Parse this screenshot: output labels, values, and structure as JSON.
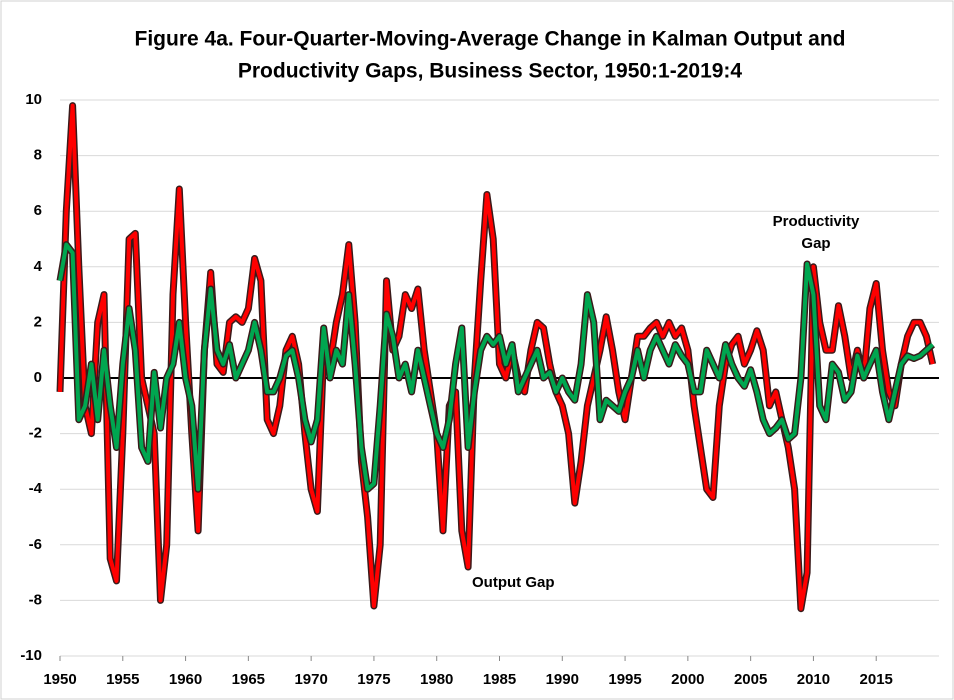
{
  "chart_data": {
    "type": "line",
    "title": [
      "Figure 4a. Four-Quarter-Moving-Average Change in Kalman Output and",
      "Productivity Gaps, Business Sector, 1950:1-2019:4"
    ],
    "annotations": [
      [
        "Productivity",
        "Gap"
      ],
      [
        "Output Gap"
      ]
    ],
    "x": [
      1950,
      1950.5,
      1951,
      1951.5,
      1952,
      1952.5,
      1953,
      1953.5,
      1954,
      1954.5,
      1955,
      1955.5,
      1956,
      1956.5,
      1957,
      1957.5,
      1958,
      1958.5,
      1959,
      1959.5,
      1960,
      1960.5,
      1961,
      1961.5,
      1962,
      1962.5,
      1963,
      1963.5,
      1964,
      1964.5,
      1965,
      1965.5,
      1966,
      1966.5,
      1967,
      1967.5,
      1968,
      1968.5,
      1969,
      1969.5,
      1970,
      1970.5,
      1971,
      1971.5,
      1972,
      1972.5,
      1973,
      1973.5,
      1974,
      1974.5,
      1975,
      1975.5,
      1976,
      1976.5,
      1977,
      1977.5,
      1978,
      1978.5,
      1979,
      1979.5,
      1980,
      1980.5,
      1981,
      1981.5,
      1982,
      1982.5,
      1983,
      1983.5,
      1984,
      1984.5,
      1985,
      1985.5,
      1986,
      1986.5,
      1987,
      1987.5,
      1988,
      1988.5,
      1989,
      1989.5,
      1990,
      1990.5,
      1991,
      1991.5,
      1992,
      1992.5,
      1993,
      1993.5,
      1994,
      1994.5,
      1995,
      1995.5,
      1996,
      1996.5,
      1997,
      1997.5,
      1998,
      1998.5,
      1999,
      1999.5,
      2000,
      2000.5,
      2001,
      2001.5,
      2002,
      2002.5,
      2003,
      2003.5,
      2004,
      2004.5,
      2005,
      2005.5,
      2006,
      2006.5,
      2007,
      2007.5,
      2008,
      2008.5,
      2009,
      2009.5,
      2010,
      2010.5,
      2011,
      2011.5,
      2012,
      2012.5,
      2013,
      2013.5,
      2014,
      2014.5,
      2015,
      2015.5,
      2016,
      2016.5,
      2017,
      2017.5,
      2018,
      2018.5,
      2019,
      2019.5
    ],
    "series": [
      {
        "name": "Output Gap",
        "color": "#ff0000",
        "values": [
          -0.5,
          6,
          9.8,
          4,
          -1,
          -2,
          2,
          3,
          -6.5,
          -7.3,
          -2,
          5,
          5.2,
          0,
          -1,
          -2,
          -8,
          -6,
          3,
          6.8,
          2,
          -2,
          -5.5,
          1,
          3.8,
          0.5,
          0.2,
          2,
          2.2,
          2,
          2.5,
          4.3,
          3.5,
          -1.5,
          -2,
          -1,
          1,
          1.5,
          0.5,
          -2,
          -4,
          -4.8,
          1,
          0.5,
          2,
          3,
          4.8,
          2,
          -3,
          -5,
          -8.2,
          -6,
          3.5,
          1,
          1.5,
          3,
          2.5,
          3.2,
          1,
          -0.5,
          -2,
          -5.5,
          -1,
          -0.5,
          -5.5,
          -6.8,
          0,
          3.5,
          6.6,
          5,
          0.5,
          0,
          1,
          0,
          -0.5,
          1,
          2,
          1.8,
          0.5,
          -0.5,
          -1,
          -2,
          -4.5,
          -3,
          -1,
          0,
          1,
          2.2,
          1,
          -0.5,
          -1.5,
          0,
          1.5,
          1.5,
          1.8,
          2,
          1.5,
          2,
          1.5,
          1.8,
          1,
          -1,
          -2.5,
          -4,
          -4.3,
          -1,
          0.5,
          1.2,
          1.5,
          0.5,
          1,
          1.7,
          1,
          -1,
          -0.5,
          -1.5,
          -2.5,
          -4,
          -8.3,
          -7,
          4,
          2,
          1,
          1,
          2.6,
          1.5,
          0,
          1,
          0,
          2.5,
          3.4,
          1,
          -0.5,
          -1,
          0.5,
          1.5,
          2,
          2,
          1.5,
          0.5
        ]
      },
      {
        "name": "Productivity Gap",
        "color": "#00a650",
        "values": [
          3.5,
          4.8,
          4.5,
          -1.5,
          -1,
          0.5,
          -1.5,
          1,
          -1,
          -2.5,
          0.5,
          2.5,
          1,
          -2.5,
          -3,
          0.2,
          -1.8,
          0,
          0.5,
          2,
          0,
          -1,
          -4,
          1,
          3.2,
          1,
          0.5,
          1.2,
          0,
          0.5,
          1,
          2,
          1,
          -0.5,
          -0.5,
          0,
          0.8,
          1,
          0,
          -1.5,
          -2.3,
          -1.5,
          1.8,
          0,
          1,
          0.5,
          3,
          0.5,
          -2.5,
          -4,
          -3.8,
          -1,
          2.3,
          1.5,
          0,
          0.5,
          -0.5,
          1,
          0,
          -1,
          -2,
          -2.5,
          -1.5,
          0.5,
          1.8,
          -2.5,
          -0.5,
          1,
          1.5,
          1.2,
          1.5,
          0.5,
          1.2,
          -0.5,
          0,
          0.5,
          1,
          0,
          0.2,
          -0.5,
          0,
          -0.5,
          -0.8,
          0.5,
          3,
          2,
          -1.5,
          -0.8,
          -1,
          -1.2,
          -0.5,
          0,
          1,
          0,
          1,
          1.5,
          1,
          0.5,
          1.2,
          0.8,
          0.5,
          -0.5,
          -0.5,
          1,
          0.5,
          0,
          1.2,
          0.5,
          0,
          -0.3,
          0.3,
          -0.5,
          -1.5,
          -2,
          -1.8,
          -1.5,
          -2.2,
          -2,
          0,
          4.1,
          3,
          -1,
          -1.5,
          0.5,
          0.2,
          -0.8,
          -0.5,
          0.8,
          0,
          0.5,
          1,
          -0.5,
          -1.5,
          -0.5,
          0.5,
          0.8,
          0.7,
          0.8,
          1,
          1.2
        ]
      }
    ],
    "xlim": [
      1950,
      2020
    ],
    "xticks": [
      1950,
      1955,
      1960,
      1965,
      1970,
      1975,
      1980,
      1985,
      1990,
      1995,
      2000,
      2005,
      2010,
      2015
    ],
    "ylim": [
      -10,
      10
    ],
    "yticks": [
      -10,
      -8,
      -6,
      -4,
      -2,
      0,
      2,
      4,
      6,
      8,
      10
    ],
    "grid": true
  }
}
